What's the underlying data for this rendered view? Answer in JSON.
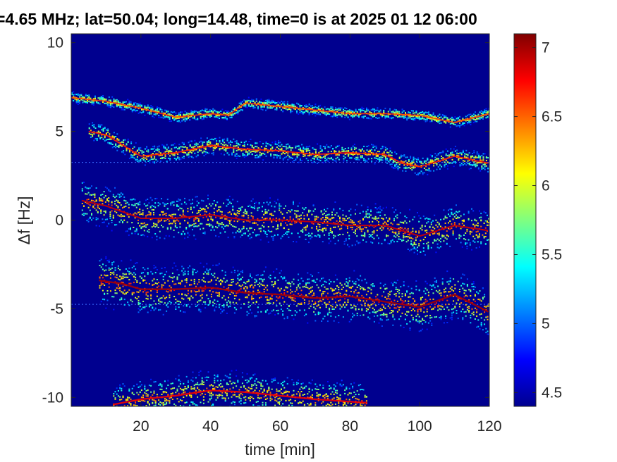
{
  "chart_data": {
    "type": "heatmap",
    "title": "=4.65 MHz;  lat=50.04; long=14.48, time=0 is at 2025 01 12 06:00",
    "xlabel": "time [min]",
    "ylabel": "Δf [Hz]",
    "xlim": [
      0,
      120
    ],
    "ylim": [
      -10.5,
      10.5
    ],
    "x_ticks": [
      "20",
      "40",
      "60",
      "80",
      "100",
      "120"
    ],
    "x_tick_values": [
      20,
      40,
      60,
      80,
      100,
      120
    ],
    "y_ticks": [
      "10",
      "5",
      "0",
      "-5",
      "-10"
    ],
    "y_tick_values": [
      10,
      5,
      0,
      -5,
      -10
    ],
    "colorbar": {
      "range": [
        4.4,
        7.1
      ],
      "ticks": [
        "7",
        "6.5",
        "6",
        "5.5",
        "5",
        "4.5"
      ],
      "tick_values": [
        7,
        6.5,
        6,
        5.5,
        5,
        4.5
      ],
      "colormap": "jet"
    },
    "background_color": "#00008f",
    "traces": [
      {
        "name": "",
        "x": [
          0,
          10,
          20,
          30,
          40,
          45,
          50,
          60,
          70,
          80,
          90,
          100,
          110,
          120
        ],
        "y": [
          6.9,
          6.7,
          6.3,
          5.8,
          6.0,
          5.9,
          6.6,
          6.4,
          6.2,
          6.0,
          6.0,
          5.9,
          5.5,
          6.0
        ],
        "start": 0,
        "width": 0.55,
        "spread": 0.5,
        "intensity": 6.6
      },
      {
        "name": "",
        "x": [
          5,
          10,
          15,
          20,
          30,
          40,
          50,
          60,
          70,
          80,
          90,
          95,
          100,
          110,
          120
        ],
        "y": [
          5.0,
          4.8,
          4.2,
          3.6,
          3.8,
          4.2,
          4.0,
          3.9,
          3.7,
          3.8,
          3.7,
          3.2,
          3.0,
          3.6,
          3.2
        ],
        "start": 5,
        "width": 0.6,
        "spread": 0.8,
        "intensity": 6.7
      },
      {
        "name": "",
        "x": [
          3,
          10,
          20,
          30,
          40,
          50,
          60,
          70,
          80,
          90,
          100,
          110,
          120
        ],
        "y": [
          1.1,
          0.8,
          0.1,
          0.1,
          0.3,
          0.0,
          0.0,
          -0.1,
          -0.3,
          -0.3,
          -0.9,
          -0.3,
          -0.6
        ],
        "start": 3,
        "width": 0.7,
        "spread": 1.6,
        "intensity": 6.9
      },
      {
        "name": "",
        "x": [
          8,
          15,
          20,
          30,
          40,
          50,
          60,
          70,
          80,
          90,
          100,
          110,
          120
        ],
        "y": [
          -3.4,
          -3.6,
          -3.9,
          -3.9,
          -3.8,
          -4.1,
          -4.2,
          -4.4,
          -4.3,
          -4.6,
          -4.9,
          -4.2,
          -5.2
        ],
        "start": 8,
        "width": 0.8,
        "spread": 1.8,
        "intensity": 7.0
      },
      {
        "name": "",
        "x": [
          12,
          20,
          30,
          40,
          50,
          60,
          70,
          85
        ],
        "y": [
          -10.4,
          -10.1,
          -9.9,
          -9.6,
          -9.7,
          -9.9,
          -10.1,
          -10.3
        ],
        "start": 12,
        "width": 0.8,
        "spread": 1.6,
        "intensity": 6.8
      }
    ],
    "baseline_artifacts_hz": [
      3.25,
      -4.75
    ],
    "grid": false,
    "legend": "none"
  }
}
